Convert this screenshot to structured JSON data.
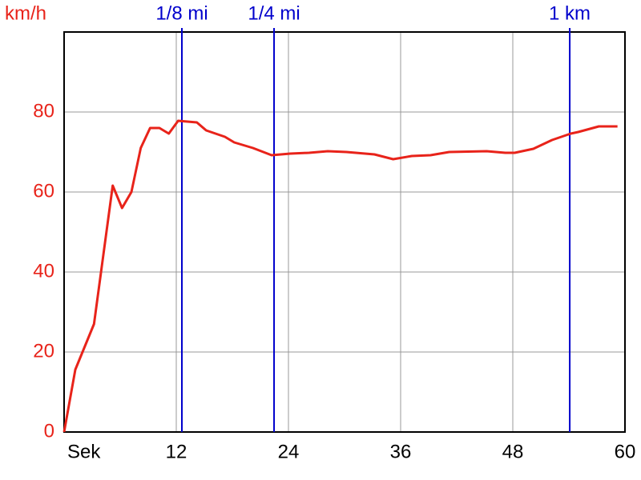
{
  "chart_data": {
    "type": "line",
    "ylabel": "km/h",
    "x": [
      0,
      1.2,
      3.2,
      5.2,
      6.2,
      7.2,
      8.2,
      9.2,
      10.2,
      11.2,
      12.2,
      14.2,
      15.2,
      17.2,
      18.2,
      20.2,
      22.2,
      24.2,
      26.2,
      28.2,
      30.2,
      33.2,
      35.2,
      37.2,
      39.2,
      41.2,
      45.2,
      47.2,
      48.2,
      50.2,
      52.2,
      54.2,
      55,
      57.2,
      59.2
    ],
    "series": [
      {
        "color": "#e8231a",
        "values": [
          0,
          15.6,
          27,
          61.6,
          56,
          60,
          71,
          76,
          76,
          74.6,
          77.8,
          77.4,
          75.4,
          73.8,
          72.4,
          71,
          69.2,
          69.6,
          69.8,
          70.2,
          70,
          69.4,
          68.2,
          69,
          69.2,
          70,
          70.2,
          69.8,
          69.8,
          70.8,
          73,
          74.6,
          75,
          76.4,
          76.4
        ]
      }
    ],
    "xlim": [
      0,
      60
    ],
    "xticks": [
      {
        "value": 0,
        "label": "Sek"
      },
      12,
      24,
      36,
      48,
      60
    ],
    "ylim": [
      0,
      100
    ],
    "yticks": [
      0,
      20,
      40,
      60,
      80,
      {
        "value": 100,
        "label": ""
      }
    ],
    "grid": true,
    "annotations": [
      {
        "label": "1/8 mi",
        "x": 12.6,
        "color": "#0000cc"
      },
      {
        "label": "1/4 mi",
        "x": 22.46,
        "color": "#0000cc"
      },
      {
        "label": "1 km",
        "x": 54.09,
        "color": "#0000cc"
      }
    ]
  }
}
